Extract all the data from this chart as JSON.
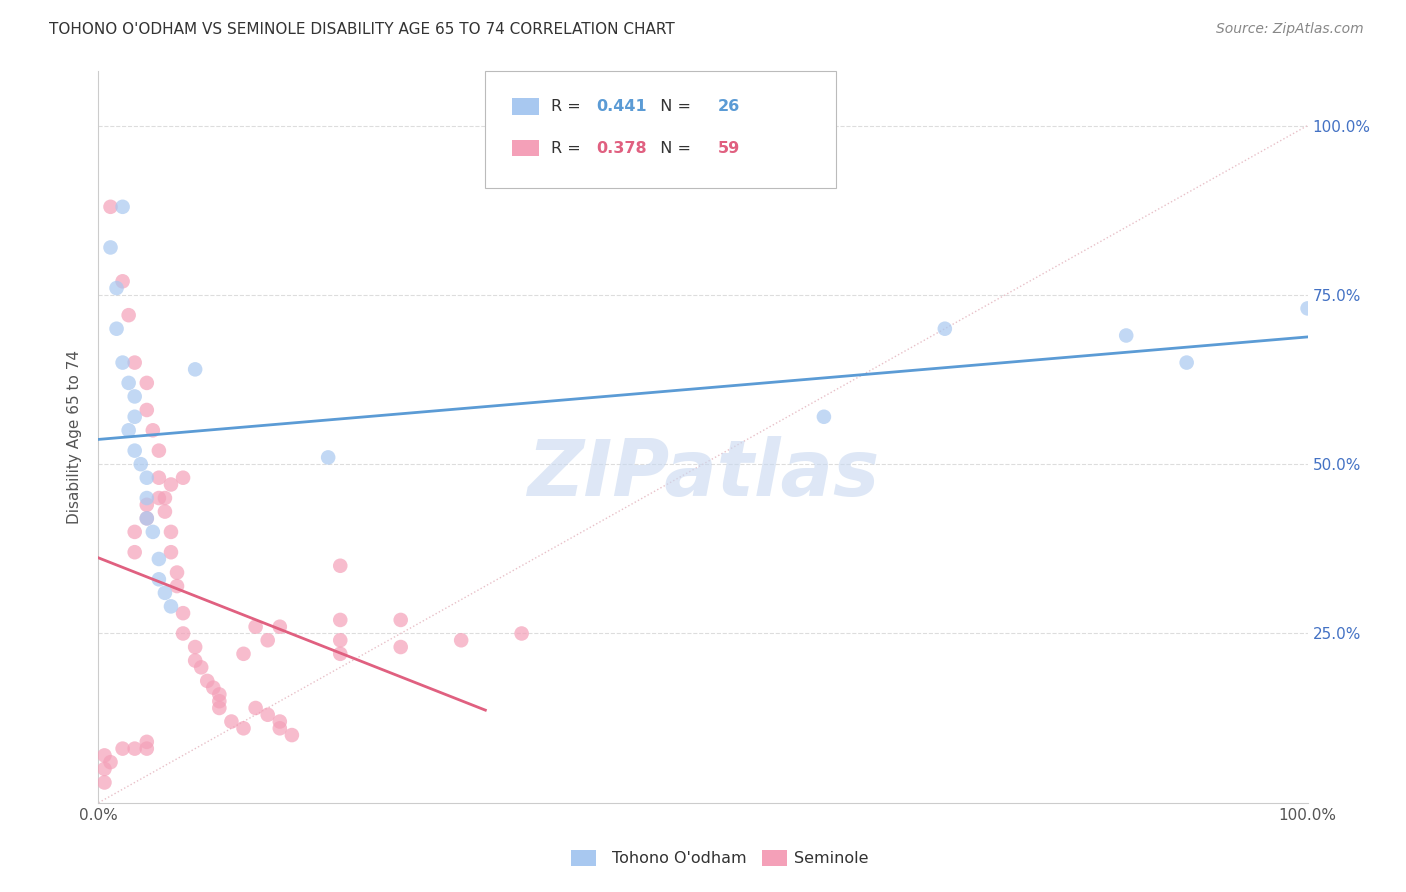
{
  "title": "TOHONO O'ODHAM VS SEMINOLE DISABILITY AGE 65 TO 74 CORRELATION CHART",
  "source": "Source: ZipAtlas.com",
  "ylabel": "Disability Age 65 to 74",
  "xlim": [
    0,
    1.0
  ],
  "ylim": [
    0.0,
    1.08
  ],
  "yticks": [
    0.25,
    0.5,
    0.75,
    1.0
  ],
  "ytick_labels": [
    "25.0%",
    "50.0%",
    "75.0%",
    "100.0%"
  ],
  "xticks": [
    0.0,
    1.0
  ],
  "xtick_labels": [
    "0.0%",
    "100.0%"
  ],
  "tohono_R": 0.441,
  "tohono_N": 26,
  "seminole_R": 0.378,
  "seminole_N": 59,
  "tohono_color": "#A8C8F0",
  "seminole_color": "#F4A0B8",
  "tohono_line_color": "#5B9BD5",
  "seminole_line_color": "#E06080",
  "diagonal_color": "#E8C0C8",
  "grid_color": "#DDDDDD",
  "background_color": "#FFFFFF",
  "tick_color": "#4472C4",
  "tohono_scatter": [
    [
      0.02,
      0.88
    ],
    [
      0.01,
      0.82
    ],
    [
      0.015,
      0.76
    ],
    [
      0.015,
      0.7
    ],
    [
      0.02,
      0.65
    ],
    [
      0.025,
      0.62
    ],
    [
      0.03,
      0.6
    ],
    [
      0.03,
      0.57
    ],
    [
      0.025,
      0.55
    ],
    [
      0.03,
      0.52
    ],
    [
      0.035,
      0.5
    ],
    [
      0.04,
      0.48
    ],
    [
      0.04,
      0.45
    ],
    [
      0.04,
      0.42
    ],
    [
      0.045,
      0.4
    ],
    [
      0.05,
      0.36
    ],
    [
      0.05,
      0.33
    ],
    [
      0.055,
      0.31
    ],
    [
      0.06,
      0.29
    ],
    [
      0.19,
      0.51
    ],
    [
      0.08,
      0.64
    ],
    [
      0.6,
      0.57
    ],
    [
      0.7,
      0.7
    ],
    [
      0.85,
      0.69
    ],
    [
      0.9,
      0.65
    ],
    [
      1.0,
      0.73
    ]
  ],
  "seminole_scatter": [
    [
      0.01,
      0.88
    ],
    [
      0.02,
      0.77
    ],
    [
      0.025,
      0.72
    ],
    [
      0.03,
      0.65
    ],
    [
      0.04,
      0.62
    ],
    [
      0.04,
      0.58
    ],
    [
      0.045,
      0.55
    ],
    [
      0.05,
      0.52
    ],
    [
      0.05,
      0.48
    ],
    [
      0.05,
      0.45
    ],
    [
      0.055,
      0.43
    ],
    [
      0.06,
      0.4
    ],
    [
      0.06,
      0.37
    ],
    [
      0.065,
      0.34
    ],
    [
      0.065,
      0.32
    ],
    [
      0.07,
      0.28
    ],
    [
      0.07,
      0.25
    ],
    [
      0.08,
      0.23
    ],
    [
      0.08,
      0.21
    ],
    [
      0.085,
      0.2
    ],
    [
      0.09,
      0.18
    ],
    [
      0.095,
      0.17
    ],
    [
      0.1,
      0.16
    ],
    [
      0.1,
      0.15
    ],
    [
      0.1,
      0.14
    ],
    [
      0.11,
      0.12
    ],
    [
      0.12,
      0.11
    ],
    [
      0.13,
      0.14
    ],
    [
      0.14,
      0.13
    ],
    [
      0.15,
      0.12
    ],
    [
      0.15,
      0.11
    ],
    [
      0.16,
      0.1
    ],
    [
      0.005,
      0.07
    ],
    [
      0.01,
      0.06
    ],
    [
      0.02,
      0.08
    ],
    [
      0.03,
      0.08
    ],
    [
      0.04,
      0.08
    ],
    [
      0.04,
      0.09
    ],
    [
      0.03,
      0.37
    ],
    [
      0.03,
      0.4
    ],
    [
      0.04,
      0.42
    ],
    [
      0.04,
      0.44
    ],
    [
      0.055,
      0.45
    ],
    [
      0.06,
      0.47
    ],
    [
      0.07,
      0.48
    ],
    [
      0.2,
      0.35
    ],
    [
      0.2,
      0.27
    ],
    [
      0.2,
      0.24
    ],
    [
      0.15,
      0.26
    ],
    [
      0.14,
      0.24
    ],
    [
      0.13,
      0.26
    ],
    [
      0.12,
      0.22
    ],
    [
      0.2,
      0.22
    ],
    [
      0.25,
      0.23
    ],
    [
      0.25,
      0.27
    ],
    [
      0.3,
      0.24
    ],
    [
      0.35,
      0.25
    ],
    [
      0.005,
      0.05
    ],
    [
      0.005,
      0.03
    ]
  ],
  "watermark": "ZIPatlas",
  "watermark_color": "#C8D8F0"
}
